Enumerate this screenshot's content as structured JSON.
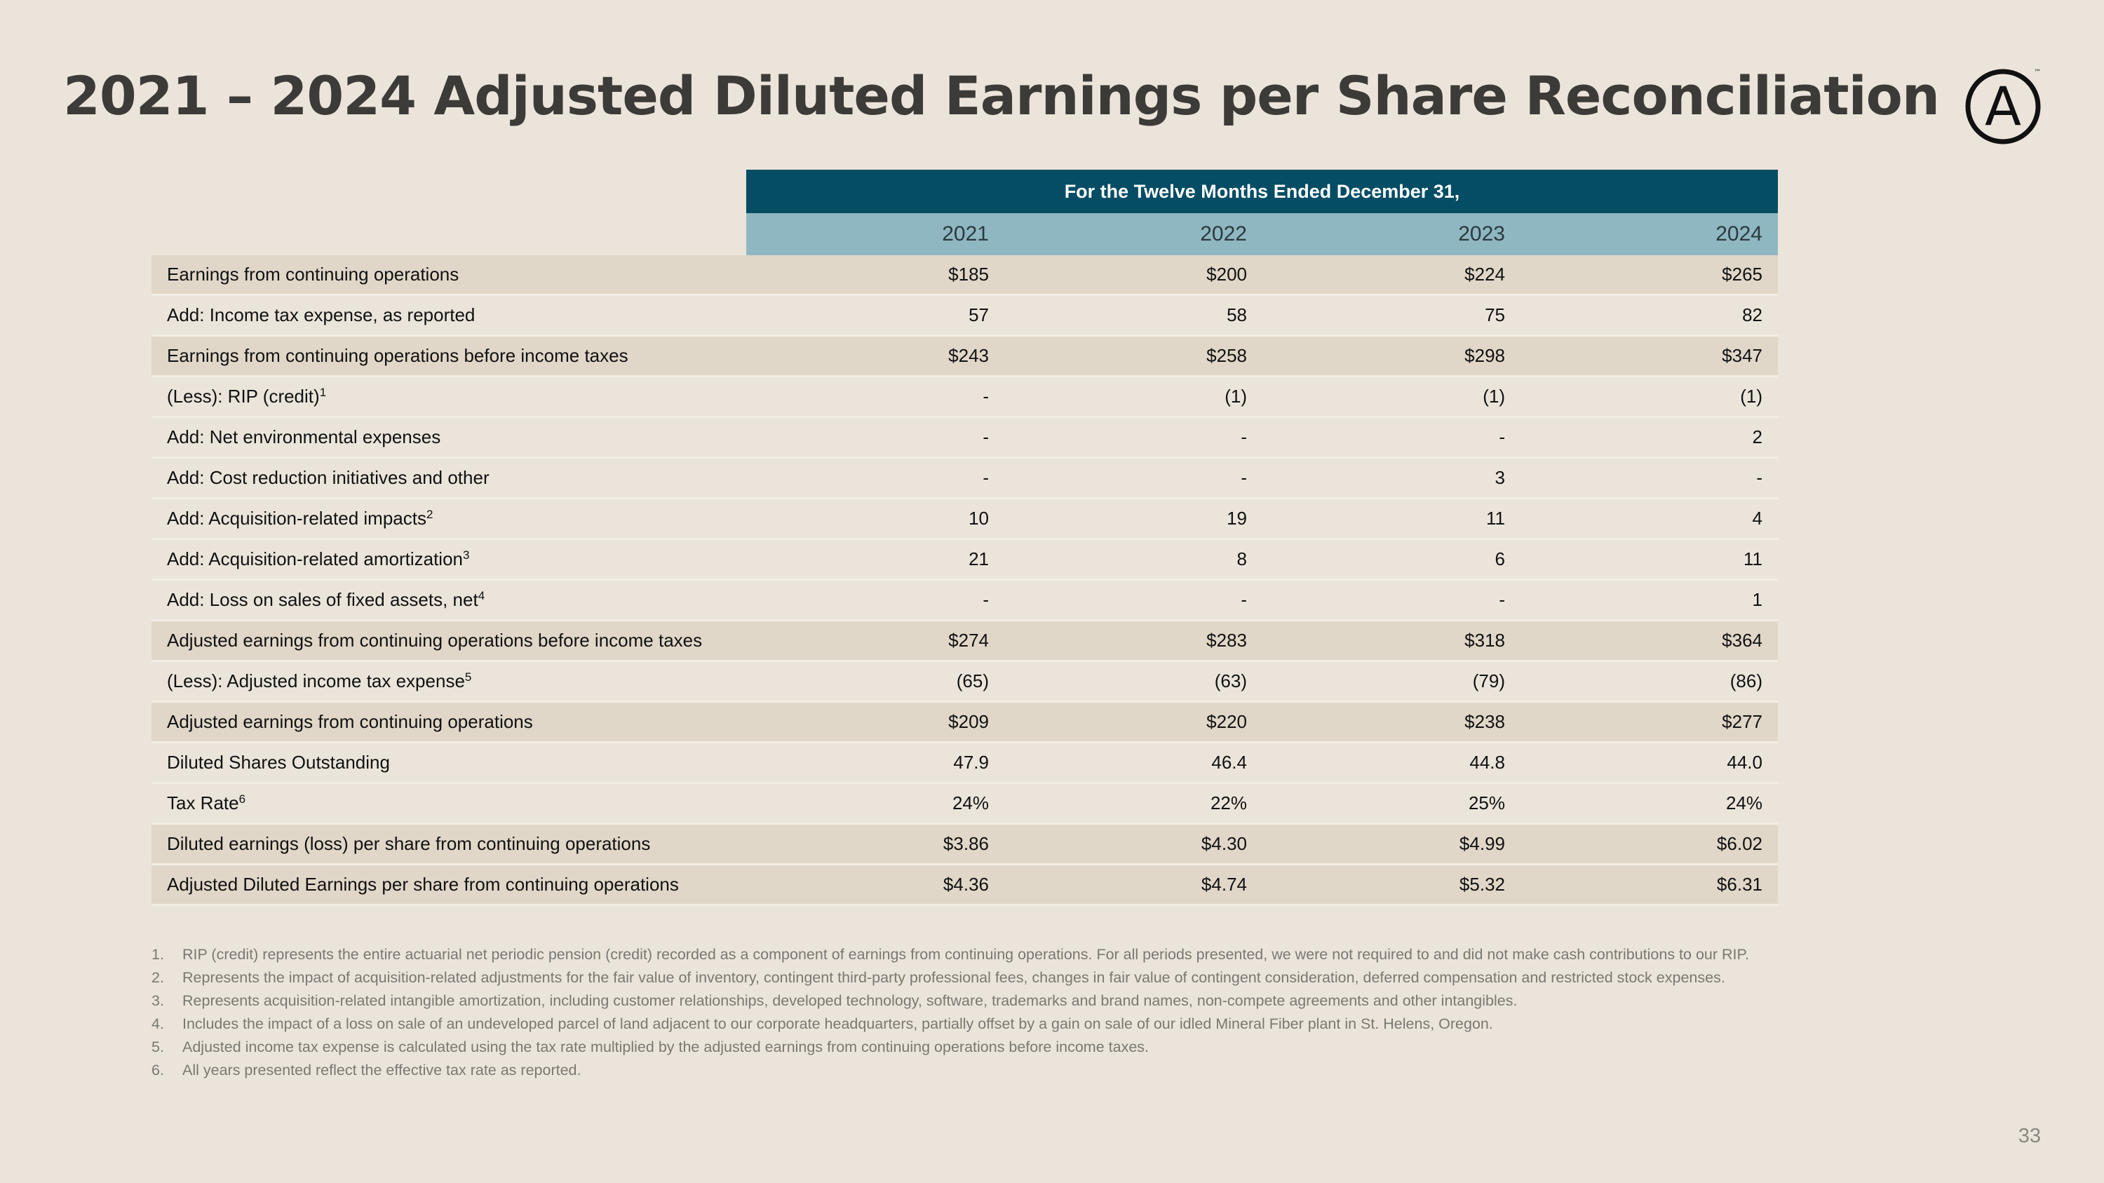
{
  "slide": {
    "title": "2021 – 2024 Adjusted Diluted Earnings per Share Reconciliation",
    "page_number": "33",
    "logo_letter": "A",
    "logo_tm": "™"
  },
  "table": {
    "period_header": "For the Twelve Months Ended December 31,",
    "years": [
      "2021",
      "2022",
      "2023",
      "2024"
    ],
    "rows": [
      {
        "label": "Earnings from continuing operations",
        "sup": "",
        "values": [
          "$185",
          "$200",
          "$224",
          "$265"
        ],
        "shaded": true
      },
      {
        "label": "Add: Income tax expense, as reported",
        "sup": "",
        "values": [
          "57",
          "58",
          "75",
          "82"
        ],
        "shaded": false
      },
      {
        "label": "Earnings from continuing operations before income taxes",
        "sup": "",
        "values": [
          "$243",
          "$258",
          "$298",
          "$347"
        ],
        "shaded": true
      },
      {
        "label": "(Less): RIP (credit)",
        "sup": "1",
        "values": [
          "-",
          "(1)",
          "(1)",
          "(1)"
        ],
        "shaded": false
      },
      {
        "label": "Add: Net environmental expenses",
        "sup": "",
        "values": [
          "-",
          "-",
          "-",
          "2"
        ],
        "shaded": false
      },
      {
        "label": "Add: Cost reduction initiatives and other",
        "sup": "",
        "values": [
          "-",
          "-",
          "3",
          "-"
        ],
        "shaded": false
      },
      {
        "label": "Add: Acquisition-related impacts",
        "sup": "2",
        "values": [
          "10",
          "19",
          "11",
          "4"
        ],
        "shaded": false
      },
      {
        "label": "Add: Acquisition-related amortization",
        "sup": "3",
        "values": [
          "21",
          "8",
          "6",
          "11"
        ],
        "shaded": false
      },
      {
        "label": "Add: Loss on sales of fixed assets, net",
        "sup": "4",
        "values": [
          "-",
          "-",
          "-",
          "1"
        ],
        "shaded": false
      },
      {
        "label": "Adjusted earnings from continuing operations before income taxes",
        "sup": "",
        "values": [
          "$274",
          "$283",
          "$318",
          "$364"
        ],
        "shaded": true
      },
      {
        "label": "(Less): Adjusted income tax expense",
        "sup": "5",
        "values": [
          "(65)",
          "(63)",
          "(79)",
          "(86)"
        ],
        "shaded": false
      },
      {
        "label": "Adjusted earnings from continuing operations",
        "sup": "",
        "values": [
          "$209",
          "$220",
          "$238",
          "$277"
        ],
        "shaded": true
      },
      {
        "label": "Diluted Shares Outstanding",
        "sup": "",
        "values": [
          "47.9",
          "46.4",
          "44.8",
          "44.0"
        ],
        "shaded": false
      },
      {
        "label": "Tax Rate",
        "sup": "6",
        "values": [
          "24%",
          "22%",
          "25%",
          "24%"
        ],
        "shaded": false
      },
      {
        "label": "Diluted earnings (loss) per share from continuing operations",
        "sup": "",
        "values": [
          "$3.86",
          "$4.30",
          "$4.99",
          "$6.02"
        ],
        "shaded": true
      },
      {
        "label": "Adjusted Diluted Earnings per share from continuing operations",
        "sup": "",
        "values": [
          "$4.36",
          "$4.74",
          "$5.32",
          "$6.31"
        ],
        "shaded": true
      }
    ]
  },
  "footnotes": [
    {
      "num": "1.",
      "text": "RIP (credit) represents the entire actuarial net periodic pension (credit) recorded as a component of earnings from continuing operations. For all periods presented, we were not required to and did not make cash contributions to our RIP."
    },
    {
      "num": "2.",
      "text": "Represents the impact of acquisition-related adjustments for the fair value of inventory, contingent third-party professional fees, changes in fair value of contingent consideration, deferred compensation and restricted stock expenses."
    },
    {
      "num": "3.",
      "text": "Represents acquisition-related intangible amortization, including customer relationships, developed technology, software, trademarks and brand names, non-compete agreements and other intangibles."
    },
    {
      "num": "4.",
      "text": "Includes the impact of a loss on sale of an undeveloped parcel of land adjacent to our corporate headquarters, partially offset by a gain on sale of our idled Mineral Fiber plant in St. Helens, Oregon."
    },
    {
      "num": "5.",
      "text": "Adjusted income tax expense is calculated using the tax rate multiplied by the adjusted earnings from continuing operations before income taxes."
    },
    {
      "num": "6.",
      "text": "All years presented reflect the effective tax rate as reported."
    }
  ],
  "colors": {
    "background": "#ebe4da",
    "header_dark": "#054d64",
    "header_light": "#8fb7c1",
    "row_shaded": "#e1d7c9",
    "title_text": "#3c3b37"
  }
}
